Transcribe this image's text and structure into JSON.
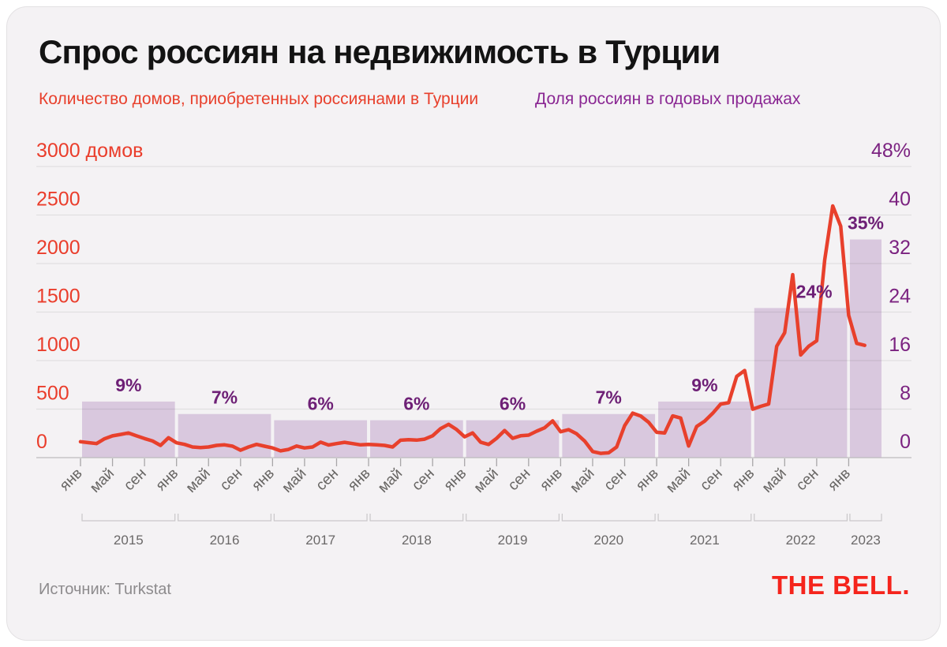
{
  "header": {
    "title": "Спрос россиян на недвижимость в Турции",
    "legend_houses": "Количество домов, приобретенных россиянами в Турции",
    "legend_share": "Доля россиян в годовых продажах"
  },
  "footer": {
    "source": "Источник: Turkstat",
    "logo": "THE BELL."
  },
  "colors": {
    "line_red": "#e8402c",
    "left_axis_red": "#ea3d2b",
    "bar_fill": "#d9c8de",
    "pct_label_purple": "#6e2076",
    "right_axis_purple": "#7b2280",
    "legend_purple": "#8a2793",
    "logo_red": "#f5241c",
    "month_label_gray": "#676563",
    "year_label_gray": "#6a6868",
    "source_gray": "#8d8b8d",
    "card_bg": "#f4f2f4",
    "grid": "rgba(0,0,0,0.08)",
    "axis_line": "#bdbbbd",
    "tick": "#a8a6a8",
    "bracket": "#c9c7c9"
  },
  "chart_data": {
    "type": "bar+line",
    "title": "Спрос россиян на недвижимость в Турции",
    "left_axis": {
      "ticks": [
        "3000 домов",
        "2500",
        "2000",
        "1500",
        "1000",
        "500",
        "0"
      ],
      "range": [
        0,
        3000
      ],
      "unit": "домов"
    },
    "right_axis": {
      "ticks": [
        "48%",
        "40",
        "32",
        "24",
        "16",
        "8",
        "0"
      ],
      "range": [
        0,
        48
      ],
      "unit": "%"
    },
    "x": {
      "month_tick_labels": [
        "янв",
        "май",
        "сен",
        "янв",
        "май",
        "сен",
        "янв",
        "май",
        "сен",
        "янв",
        "май",
        "сен",
        "янв",
        "май",
        "сен",
        "янв",
        "май",
        "сен",
        "янв",
        "май",
        "сен",
        "янв",
        "май",
        "сен",
        "янв"
      ],
      "year_labels": [
        "2015",
        "2016",
        "2017",
        "2018",
        "2019",
        "2020",
        "2021",
        "2022",
        "2023"
      ]
    },
    "bars": {
      "name": "Доля россиян в годовых продажах",
      "unit": "%",
      "years": [
        2015,
        2016,
        2017,
        2018,
        2019,
        2020,
        2021,
        2022,
        2023
      ],
      "values": [
        9,
        7,
        6,
        6,
        6,
        7,
        9,
        24,
        35
      ],
      "labels": [
        "9%",
        "7%",
        "6%",
        "6%",
        "6%",
        "7%",
        "9%",
        "24%",
        "35%"
      ]
    },
    "line": {
      "name": "Количество домов, приобретенных россиянами в Турции",
      "unit": "домов",
      "first_month": "2015-01",
      "values": [
        165,
        155,
        145,
        195,
        225,
        240,
        255,
        225,
        197,
        172,
        126,
        205,
        153,
        137,
        110,
        104,
        110,
        126,
        132,
        118,
        77,
        110,
        137,
        118,
        100,
        70,
        85,
        120,
        100,
        110,
        160,
        130,
        145,
        158,
        145,
        132,
        137,
        132,
        126,
        110,
        180,
        185,
        181,
        191,
        226,
        300,
        344,
        290,
        215,
        255,
        160,
        136,
        200,
        280,
        200,
        226,
        232,
        273,
        308,
        380,
        267,
        289,
        246,
        172,
        63,
        44,
        50,
        110,
        330,
        460,
        430,
        365,
        262,
        254,
        431,
        409,
        120,
        322,
        377,
        458,
        553,
        567,
        839,
        900,
        500,
        530,
        553,
        1150,
        1290,
        1890,
        1060,
        1150,
        1207,
        2040,
        2600,
        2390,
        1470,
        1180,
        1160
      ]
    }
  }
}
